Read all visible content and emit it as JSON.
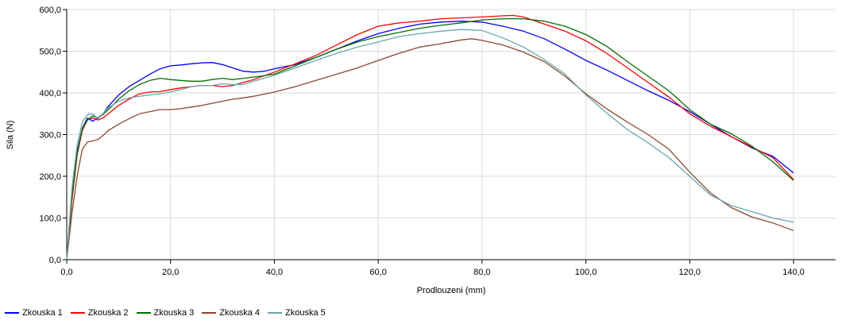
{
  "chart_data": {
    "type": "line",
    "title": "",
    "xlabel": "Prodlouzeni (mm)",
    "ylabel": "Sila (N)",
    "xlim": [
      0,
      150
    ],
    "ylim": [
      0,
      600
    ],
    "x_ticks": [
      0,
      20,
      40,
      60,
      80,
      100,
      120,
      140
    ],
    "x_tick_labels": [
      "0,0",
      "20,0",
      "40,0",
      "60,0",
      "80,0",
      "100,0",
      "120,0",
      "140,0"
    ],
    "y_ticks": [
      0,
      100,
      200,
      300,
      400,
      500,
      600
    ],
    "y_tick_labels": [
      "0,0",
      "100,0",
      "200,0",
      "300,0",
      "400,0",
      "500,0",
      "600,0"
    ],
    "grid": true,
    "legend_position": "bottom-left",
    "series": [
      {
        "name": "Zkouska 1",
        "color": "#0000ff",
        "points": [
          [
            0,
            0
          ],
          [
            1,
            160
          ],
          [
            2,
            260
          ],
          [
            3,
            315
          ],
          [
            4,
            340
          ],
          [
            5,
            332
          ],
          [
            6,
            340
          ],
          [
            7,
            350
          ],
          [
            8,
            368
          ],
          [
            10,
            395
          ],
          [
            12,
            415
          ],
          [
            14,
            430
          ],
          [
            16,
            445
          ],
          [
            18,
            458
          ],
          [
            20,
            465
          ],
          [
            22,
            467
          ],
          [
            24,
            470
          ],
          [
            26,
            472
          ],
          [
            28,
            473
          ],
          [
            30,
            468
          ],
          [
            32,
            460
          ],
          [
            34,
            452
          ],
          [
            36,
            450
          ],
          [
            38,
            452
          ],
          [
            40,
            458
          ],
          [
            44,
            468
          ],
          [
            48,
            485
          ],
          [
            52,
            505
          ],
          [
            56,
            525
          ],
          [
            60,
            542
          ],
          [
            64,
            555
          ],
          [
            68,
            565
          ],
          [
            72,
            570
          ],
          [
            76,
            572
          ],
          [
            80,
            570
          ],
          [
            84,
            560
          ],
          [
            88,
            548
          ],
          [
            92,
            530
          ],
          [
            96,
            505
          ],
          [
            100,
            478
          ],
          [
            104,
            455
          ],
          [
            108,
            430
          ],
          [
            112,
            405
          ],
          [
            116,
            382
          ],
          [
            120,
            355
          ],
          [
            124,
            325
          ],
          [
            128,
            295
          ],
          [
            132,
            268
          ],
          [
            136,
            248
          ],
          [
            140,
            208
          ]
        ]
      },
      {
        "name": "Zkouska 2",
        "color": "#ff0000",
        "points": [
          [
            0,
            0
          ],
          [
            1,
            140
          ],
          [
            2,
            250
          ],
          [
            3,
            310
          ],
          [
            4,
            335
          ],
          [
            5,
            340
          ],
          [
            6,
            335
          ],
          [
            7,
            340
          ],
          [
            8,
            350
          ],
          [
            10,
            370
          ],
          [
            12,
            385
          ],
          [
            14,
            398
          ],
          [
            16,
            402
          ],
          [
            18,
            403
          ],
          [
            20,
            408
          ],
          [
            22,
            412
          ],
          [
            24,
            415
          ],
          [
            26,
            418
          ],
          [
            28,
            418
          ],
          [
            30,
            415
          ],
          [
            32,
            418
          ],
          [
            34,
            425
          ],
          [
            36,
            432
          ],
          [
            40,
            450
          ],
          [
            44,
            470
          ],
          [
            48,
            490
          ],
          [
            52,
            515
          ],
          [
            56,
            540
          ],
          [
            60,
            560
          ],
          [
            64,
            568
          ],
          [
            68,
            572
          ],
          [
            72,
            578
          ],
          [
            76,
            580
          ],
          [
            80,
            582
          ],
          [
            84,
            585
          ],
          [
            86,
            586
          ],
          [
            88,
            582
          ],
          [
            92,
            565
          ],
          [
            96,
            548
          ],
          [
            100,
            525
          ],
          [
            104,
            495
          ],
          [
            108,
            460
          ],
          [
            112,
            425
          ],
          [
            116,
            390
          ],
          [
            120,
            350
          ],
          [
            124,
            320
          ],
          [
            128,
            295
          ],
          [
            132,
            270
          ],
          [
            136,
            245
          ],
          [
            140,
            192
          ]
        ]
      },
      {
        "name": "Zkouska 3",
        "color": "#007000",
        "points": [
          [
            0,
            0
          ],
          [
            1,
            150
          ],
          [
            2,
            255
          ],
          [
            3,
            315
          ],
          [
            4,
            335
          ],
          [
            5,
            345
          ],
          [
            6,
            340
          ],
          [
            7,
            348
          ],
          [
            8,
            360
          ],
          [
            10,
            385
          ],
          [
            12,
            405
          ],
          [
            14,
            420
          ],
          [
            16,
            430
          ],
          [
            18,
            435
          ],
          [
            20,
            432
          ],
          [
            22,
            430
          ],
          [
            24,
            428
          ],
          [
            26,
            428
          ],
          [
            28,
            432
          ],
          [
            30,
            435
          ],
          [
            32,
            432
          ],
          [
            34,
            435
          ],
          [
            36,
            438
          ],
          [
            40,
            445
          ],
          [
            44,
            465
          ],
          [
            48,
            485
          ],
          [
            52,
            505
          ],
          [
            56,
            522
          ],
          [
            60,
            535
          ],
          [
            64,
            545
          ],
          [
            68,
            555
          ],
          [
            72,
            562
          ],
          [
            76,
            568
          ],
          [
            80,
            575
          ],
          [
            84,
            578
          ],
          [
            88,
            578
          ],
          [
            92,
            572
          ],
          [
            96,
            560
          ],
          [
            100,
            540
          ],
          [
            104,
            512
          ],
          [
            108,
            475
          ],
          [
            112,
            440
          ],
          [
            116,
            405
          ],
          [
            120,
            360
          ],
          [
            124,
            325
          ],
          [
            128,
            302
          ],
          [
            132,
            272
          ],
          [
            136,
            235
          ],
          [
            140,
            190
          ]
        ]
      },
      {
        "name": "Zkouska 4",
        "color": "#8b4a2b",
        "points": [
          [
            0,
            0
          ],
          [
            1,
            110
          ],
          [
            2,
            200
          ],
          [
            3,
            265
          ],
          [
            4,
            282
          ],
          [
            5,
            285
          ],
          [
            6,
            288
          ],
          [
            7,
            298
          ],
          [
            8,
            310
          ],
          [
            10,
            325
          ],
          [
            12,
            338
          ],
          [
            14,
            350
          ],
          [
            16,
            355
          ],
          [
            18,
            360
          ],
          [
            20,
            360
          ],
          [
            22,
            362
          ],
          [
            24,
            366
          ],
          [
            26,
            370
          ],
          [
            28,
            375
          ],
          [
            30,
            380
          ],
          [
            32,
            385
          ],
          [
            34,
            388
          ],
          [
            36,
            392
          ],
          [
            40,
            402
          ],
          [
            44,
            415
          ],
          [
            48,
            430
          ],
          [
            52,
            445
          ],
          [
            56,
            460
          ],
          [
            60,
            478
          ],
          [
            64,
            495
          ],
          [
            68,
            510
          ],
          [
            72,
            518
          ],
          [
            76,
            527
          ],
          [
            78,
            530
          ],
          [
            80,
            526
          ],
          [
            84,
            515
          ],
          [
            88,
            498
          ],
          [
            92,
            475
          ],
          [
            96,
            440
          ],
          [
            100,
            398
          ],
          [
            104,
            362
          ],
          [
            108,
            330
          ],
          [
            112,
            300
          ],
          [
            116,
            265
          ],
          [
            120,
            210
          ],
          [
            124,
            160
          ],
          [
            128,
            125
          ],
          [
            132,
            102
          ],
          [
            136,
            88
          ],
          [
            140,
            70
          ]
        ]
      },
      {
        "name": "Zkouska 5",
        "color": "#6aa5ad",
        "points": [
          [
            0,
            0
          ],
          [
            1,
            170
          ],
          [
            2,
            275
          ],
          [
            3,
            330
          ],
          [
            4,
            348
          ],
          [
            5,
            350
          ],
          [
            6,
            338
          ],
          [
            7,
            350
          ],
          [
            8,
            365
          ],
          [
            10,
            380
          ],
          [
            12,
            388
          ],
          [
            14,
            392
          ],
          [
            16,
            395
          ],
          [
            18,
            398
          ],
          [
            20,
            402
          ],
          [
            22,
            408
          ],
          [
            24,
            415
          ],
          [
            26,
            418
          ],
          [
            28,
            418
          ],
          [
            30,
            422
          ],
          [
            32,
            420
          ],
          [
            34,
            420
          ],
          [
            36,
            428
          ],
          [
            40,
            442
          ],
          [
            44,
            460
          ],
          [
            48,
            478
          ],
          [
            52,
            495
          ],
          [
            56,
            510
          ],
          [
            60,
            522
          ],
          [
            64,
            535
          ],
          [
            68,
            542
          ],
          [
            72,
            548
          ],
          [
            76,
            552
          ],
          [
            80,
            550
          ],
          [
            84,
            532
          ],
          [
            88,
            510
          ],
          [
            92,
            480
          ],
          [
            96,
            445
          ],
          [
            100,
            395
          ],
          [
            104,
            352
          ],
          [
            108,
            312
          ],
          [
            112,
            280
          ],
          [
            116,
            245
          ],
          [
            120,
            200
          ],
          [
            124,
            155
          ],
          [
            128,
            130
          ],
          [
            132,
            115
          ],
          [
            136,
            100
          ],
          [
            140,
            90
          ]
        ]
      }
    ]
  }
}
